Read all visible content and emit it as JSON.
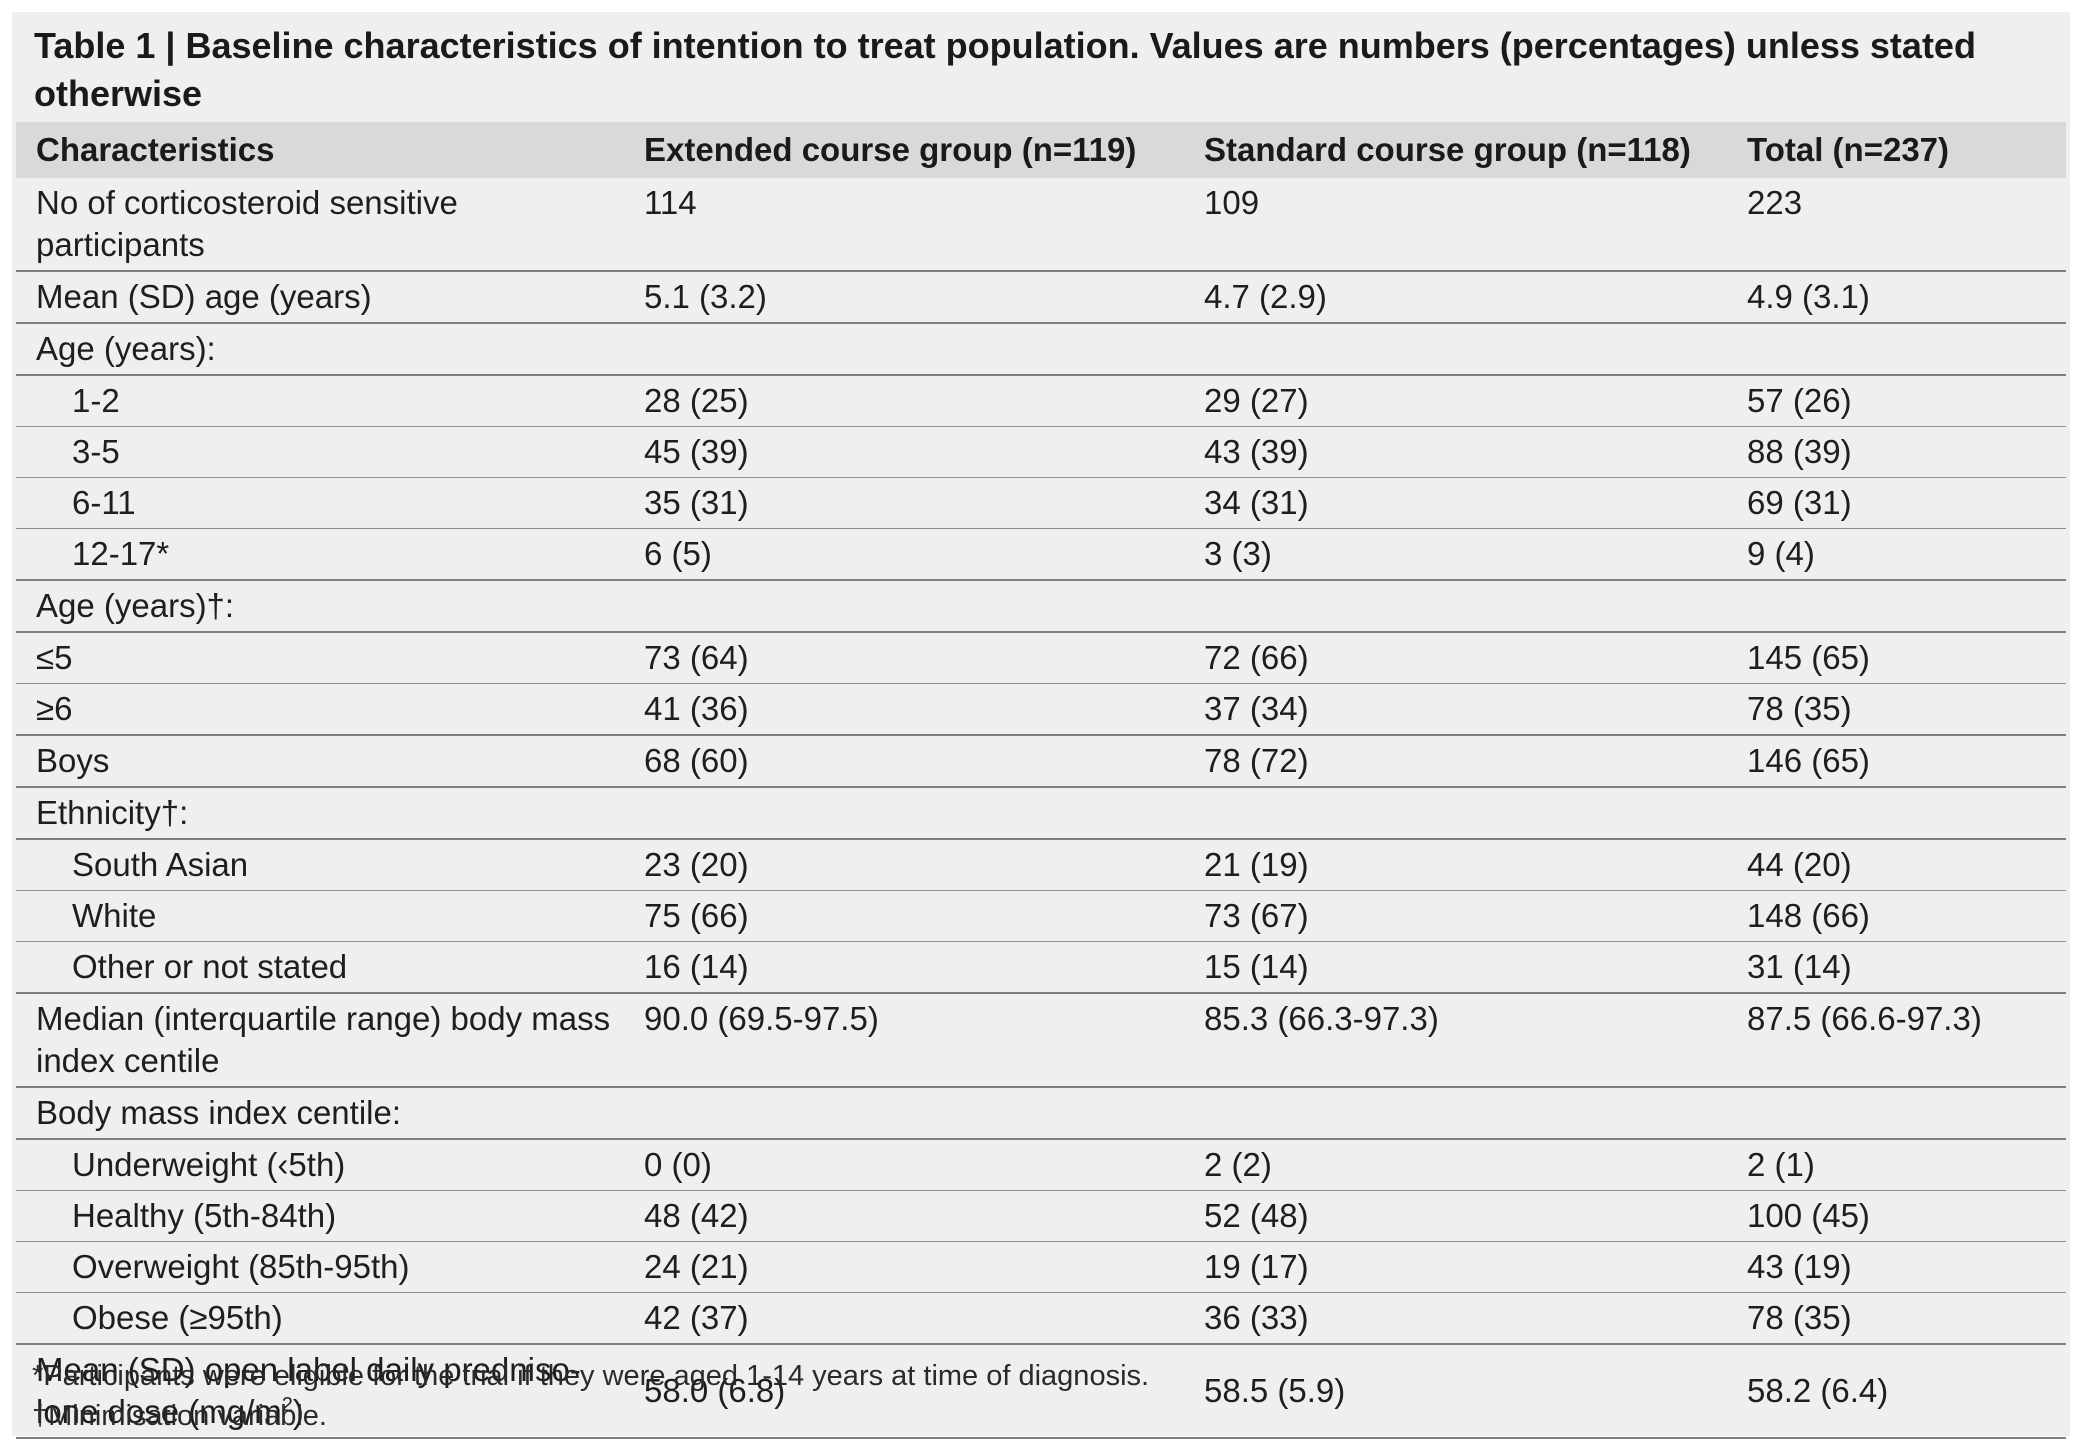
{
  "title": "Table 1 | Baseline characteristics of intention to treat population. Values are numbers (percentages) unless stated otherwise",
  "headers": [
    "Characteristics",
    "Extended course group (n=119)",
    "Standard course group (n=118)",
    "Total (n=237)"
  ],
  "rows": [
    {
      "label": "No of corticosteroid sensitive participants",
      "v1": "114",
      "v2": "109",
      "v3": "223"
    },
    {
      "label": "Mean (SD) age (years)",
      "v1": "5.1 (3.2)",
      "v2": "4.7 (2.9)",
      "v3": "4.9 (3.1)"
    },
    {
      "label": "Age (years):",
      "v1": "",
      "v2": "",
      "v3": ""
    },
    {
      "label": "1-2",
      "v1": "28 (25)",
      "v2": "29 (27)",
      "v3": "57 (26)"
    },
    {
      "label": "3-5",
      "v1": "45 (39)",
      "v2": "43 (39)",
      "v3": "88 (39)"
    },
    {
      "label": "6-11",
      "v1": "35 (31)",
      "v2": "34 (31)",
      "v3": "69 (31)"
    },
    {
      "label": "12-17*",
      "v1": "6 (5)",
      "v2": "3 (3)",
      "v3": "9 (4)"
    },
    {
      "label": "Age (years)†:",
      "v1": "",
      "v2": "",
      "v3": ""
    },
    {
      "label": "≤5",
      "v1": "73 (64)",
      "v2": "72 (66)",
      "v3": "145 (65)"
    },
    {
      "label": "≥6",
      "v1": "41 (36)",
      "v2": "37 (34)",
      "v3": "78 (35)"
    },
    {
      "label": "Boys",
      "v1": "68 (60)",
      "v2": "78 (72)",
      "v3": "146 (65)"
    },
    {
      "label": "Ethnicity†:",
      "v1": "",
      "v2": "",
      "v3": ""
    },
    {
      "label": "South Asian",
      "v1": "23 (20)",
      "v2": "21 (19)",
      "v3": "44 (20)"
    },
    {
      "label": "White",
      "v1": "75 (66)",
      "v2": "73 (67)",
      "v3": "148 (66)"
    },
    {
      "label": "Other or not stated",
      "v1": "16 (14)",
      "v2": "15 (14)",
      "v3": "31 (14)"
    },
    {
      "label": "Median (interquartile range) body mass index centile",
      "v1": "90.0 (69.5-97.5)",
      "v2": "85.3 (66.3-97.3)",
      "v3": "87.5 (66.6-97.3)"
    },
    {
      "label": "Body mass index centile:",
      "v1": "",
      "v2": "",
      "v3": ""
    },
    {
      "label": "Underweight (‹5th)",
      "v1": "0 (0)",
      "v2": "2 (2)",
      "v3": "2 (1)"
    },
    {
      "label": "Healthy (5th-84th)",
      "v1": "48 (42)",
      "v2": "52 (48)",
      "v3": "100 (45)"
    },
    {
      "label": "Overweight (85th-95th)",
      "v1": "24 (21)",
      "v2": "19 (17)",
      "v3": "43 (19)"
    },
    {
      "label": "Obese (≥95th)",
      "v1": "42 (37)",
      "v2": "36 (33)",
      "v3": "78 (35)"
    },
    {
      "label": "Mean (SD) open label daily predniso- lone dose (mg/m",
      "label_sup": "2",
      "label_end": ")",
      "v1": "58.0 (6.8)",
      "v2": "58.5 (5.9)",
      "v3": "58.2 (6.4)"
    }
  ],
  "footnotes": [
    "*Participants were eligible for the trial if they were aged 1-14 years at time of diagnosis.",
    "†Minimisation variable."
  ]
}
